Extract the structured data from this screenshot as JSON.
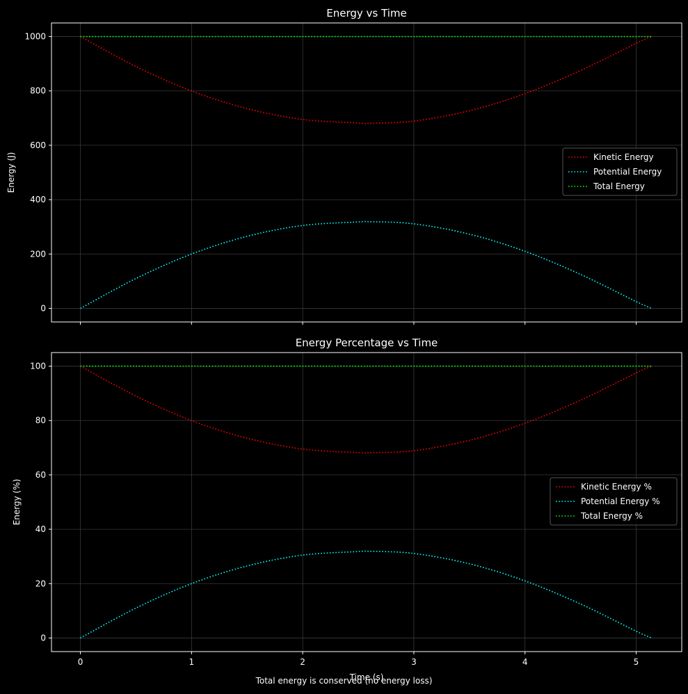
{
  "figure": {
    "footnote": "Total energy is conserved (no energy loss)"
  },
  "colors": {
    "background": "#000000",
    "kinetic": "#ff0000",
    "potential": "#00ffff",
    "total": "#00ff00",
    "grid": "#3a3a3a",
    "axes": "#ffffff"
  },
  "chart_data": [
    {
      "type": "line",
      "title": "Energy vs Time",
      "xlabel": "",
      "ylabel": "Energy (J)",
      "xlim": [
        -0.26,
        5.41
      ],
      "ylim": [
        -50,
        1050
      ],
      "xticks": [
        0,
        1,
        2,
        3,
        4,
        5
      ],
      "yticks": [
        0,
        200,
        400,
        600,
        800,
        1000
      ],
      "show_xtick_labels": false,
      "grid": true,
      "legend_position": "center-right",
      "line_style": "dotted",
      "x": [
        0,
        0.5,
        1,
        1.5,
        2,
        2.5,
        2.6,
        3,
        3.5,
        4,
        4.5,
        5,
        5.14
      ],
      "series": [
        {
          "name": "Kinetic Energy",
          "color": "#ff0000",
          "values": [
            1000,
            890,
            800,
            735,
            695,
            682,
            681,
            689,
            727,
            790,
            875,
            975,
            1000
          ]
        },
        {
          "name": "Potential Energy",
          "color": "#00ffff",
          "values": [
            0,
            110,
            200,
            265,
            305,
            318,
            319,
            311,
            273,
            210,
            125,
            25,
            0
          ]
        },
        {
          "name": "Total Energy",
          "color": "#00ff00",
          "values": [
            1000,
            1000,
            1000,
            1000,
            1000,
            1000,
            1000,
            1000,
            1000,
            1000,
            1000,
            1000,
            1000
          ]
        }
      ]
    },
    {
      "type": "line",
      "title": "Energy Percentage vs Time",
      "xlabel": "Time (s)",
      "ylabel": "Energy (%)",
      "xlim": [
        -0.26,
        5.41
      ],
      "ylim": [
        -5,
        105
      ],
      "xticks": [
        0,
        1,
        2,
        3,
        4,
        5
      ],
      "yticks": [
        0,
        20,
        40,
        60,
        80,
        100
      ],
      "show_xtick_labels": true,
      "grid": true,
      "legend_position": "center-right",
      "line_style": "dotted",
      "x": [
        0,
        0.5,
        1,
        1.5,
        2,
        2.5,
        2.6,
        3,
        3.5,
        4,
        4.5,
        5,
        5.14
      ],
      "series": [
        {
          "name": "Kinetic Energy %",
          "color": "#ff0000",
          "values": [
            100,
            89,
            80,
            73.5,
            69.5,
            68.2,
            68.1,
            68.9,
            72.7,
            79,
            87.5,
            97.5,
            100
          ]
        },
        {
          "name": "Potential Energy %",
          "color": "#00ffff",
          "values": [
            0,
            11,
            20,
            26.5,
            30.5,
            31.8,
            31.9,
            31.1,
            27.3,
            21,
            12.5,
            2.5,
            0
          ]
        },
        {
          "name": "Total Energy %",
          "color": "#00ff00",
          "values": [
            100,
            100,
            100,
            100,
            100,
            100,
            100,
            100,
            100,
            100,
            100,
            100,
            100
          ]
        }
      ]
    }
  ]
}
